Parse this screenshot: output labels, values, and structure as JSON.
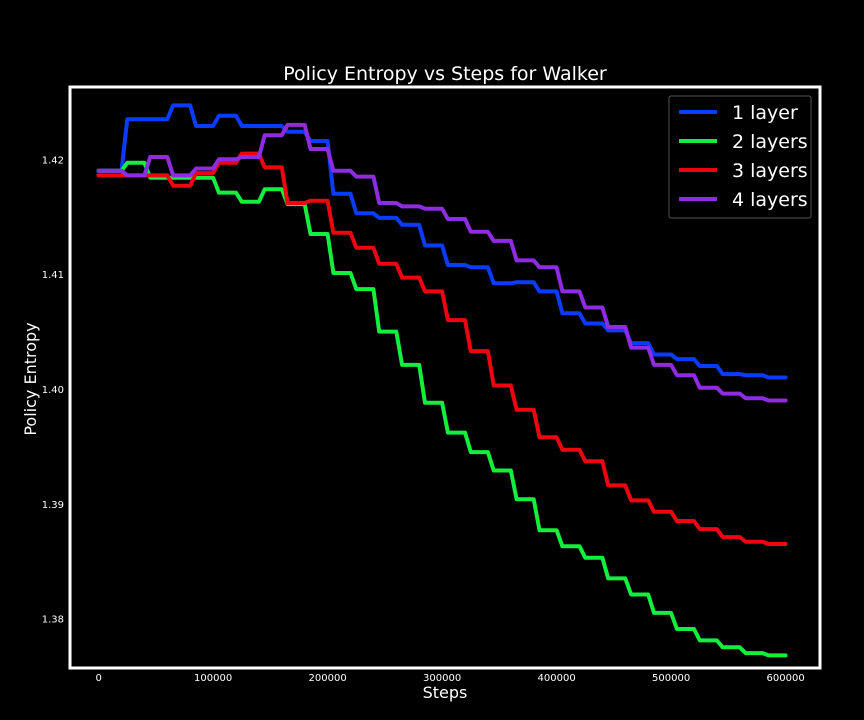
{
  "chart_data": {
    "type": "line",
    "title": "Policy Entropy vs Steps for Walker",
    "xlabel": "Steps",
    "ylabel": "Policy Entropy",
    "xlim": [
      -25000,
      630000
    ],
    "ylim": [
      1.3757,
      1.4263
    ],
    "xticks": [
      0,
      100000,
      200000,
      300000,
      400000,
      500000,
      600000
    ],
    "xtick_labels": [
      "0",
      "100000",
      "200000",
      "300000",
      "400000",
      "500000",
      "600000"
    ],
    "yticks": [
      1.38,
      1.39,
      1.4,
      1.41,
      1.42
    ],
    "ytick_labels": [
      "1.38",
      "1.39",
      "1.40",
      "1.41",
      "1.42"
    ],
    "grid": false,
    "legend_position": "top-right",
    "background": "#000000",
    "frame_color": "#ffffff",
    "series": [
      {
        "name": "1 layer",
        "color": "#0a3cff",
        "x": [
          0,
          20000,
          25000,
          60000,
          65000,
          80000,
          85000,
          100000,
          105000,
          120000,
          125000,
          160000,
          165000,
          180000,
          185000,
          200000,
          205000,
          220000,
          225000,
          240000,
          245000,
          260000,
          265000,
          280000,
          285000,
          300000,
          305000,
          320000,
          325000,
          340000,
          345000,
          360000,
          365000,
          380000,
          385000,
          400000,
          405000,
          420000,
          425000,
          440000,
          445000,
          460000,
          465000,
          480000,
          485000,
          500000,
          505000,
          520000,
          525000,
          540000,
          545000,
          560000,
          565000,
          580000,
          585000,
          600000
        ],
        "y": [
          1.419,
          1.419,
          1.4235,
          1.4235,
          1.4247,
          1.4247,
          1.4229,
          1.4229,
          1.4238,
          1.4238,
          1.4229,
          1.4229,
          1.4224,
          1.4224,
          1.4216,
          1.4216,
          1.417,
          1.417,
          1.4153,
          1.4153,
          1.4149,
          1.4149,
          1.4143,
          1.4143,
          1.4125,
          1.4125,
          1.4108,
          1.4108,
          1.4106,
          1.4106,
          1.4092,
          1.4092,
          1.4093,
          1.4093,
          1.4085,
          1.4085,
          1.4066,
          1.4066,
          1.4057,
          1.4057,
          1.4051,
          1.4051,
          1.404,
          1.404,
          1.403,
          1.403,
          1.4026,
          1.4026,
          1.402,
          1.402,
          1.4013,
          1.4013,
          1.4012,
          1.4012,
          1.401,
          1.401
        ]
      },
      {
        "name": "2 layers",
        "color": "#12ef3c",
        "x": [
          0,
          20000,
          25000,
          40000,
          45000,
          80000,
          85000,
          100000,
          105000,
          120000,
          125000,
          140000,
          145000,
          160000,
          165000,
          180000,
          185000,
          200000,
          205000,
          220000,
          225000,
          240000,
          245000,
          260000,
          265000,
          280000,
          285000,
          300000,
          305000,
          320000,
          325000,
          340000,
          345000,
          360000,
          365000,
          380000,
          385000,
          400000,
          405000,
          420000,
          425000,
          440000,
          445000,
          460000,
          465000,
          480000,
          485000,
          500000,
          505000,
          520000,
          525000,
          540000,
          545000,
          560000,
          565000,
          580000,
          585000,
          600000
        ],
        "y": [
          1.419,
          1.419,
          1.4197,
          1.4197,
          1.4184,
          1.4184,
          1.4184,
          1.4184,
          1.4171,
          1.4171,
          1.4163,
          1.4163,
          1.4174,
          1.4174,
          1.4161,
          1.4161,
          1.4135,
          1.4135,
          1.4101,
          1.4101,
          1.4087,
          1.4087,
          1.405,
          1.405,
          1.4021,
          1.4021,
          1.3988,
          1.3988,
          1.3962,
          1.3962,
          1.3945,
          1.3945,
          1.3929,
          1.3929,
          1.3904,
          1.3904,
          1.3877,
          1.3877,
          1.3863,
          1.3863,
          1.3853,
          1.3853,
          1.3835,
          1.3835,
          1.3821,
          1.3821,
          1.3805,
          1.3805,
          1.3791,
          1.3791,
          1.3781,
          1.3781,
          1.3775,
          1.3775,
          1.377,
          1.377,
          1.3768,
          1.3768
        ]
      },
      {
        "name": "3 layers",
        "color": "#ef0510",
        "x": [
          0,
          60000,
          65000,
          80000,
          85000,
          100000,
          105000,
          120000,
          125000,
          140000,
          145000,
          160000,
          165000,
          180000,
          185000,
          200000,
          205000,
          220000,
          225000,
          240000,
          245000,
          260000,
          265000,
          280000,
          285000,
          300000,
          305000,
          320000,
          325000,
          340000,
          345000,
          360000,
          365000,
          380000,
          385000,
          400000,
          405000,
          420000,
          425000,
          440000,
          445000,
          460000,
          465000,
          480000,
          485000,
          500000,
          505000,
          520000,
          525000,
          540000,
          545000,
          560000,
          565000,
          580000,
          585000,
          600000
        ],
        "y": [
          1.4186,
          1.4186,
          1.4177,
          1.4177,
          1.4188,
          1.4188,
          1.4197,
          1.4197,
          1.4205,
          1.4205,
          1.4193,
          1.4193,
          1.4162,
          1.4162,
          1.4164,
          1.4164,
          1.4136,
          1.4136,
          1.4123,
          1.4123,
          1.4109,
          1.4109,
          1.4097,
          1.4097,
          1.4085,
          1.4085,
          1.406,
          1.406,
          1.4033,
          1.4033,
          1.4003,
          1.4003,
          1.3982,
          1.3982,
          1.3958,
          1.3958,
          1.3947,
          1.3947,
          1.3937,
          1.3937,
          1.3916,
          1.3916,
          1.3903,
          1.3903,
          1.3893,
          1.3893,
          1.3885,
          1.3885,
          1.3878,
          1.3878,
          1.3871,
          1.3871,
          1.3867,
          1.3867,
          1.3865,
          1.3865
        ]
      },
      {
        "name": "4 layers",
        "color": "#8f2be0",
        "x": [
          0,
          20000,
          25000,
          40000,
          45000,
          60000,
          65000,
          80000,
          85000,
          100000,
          105000,
          120000,
          125000,
          140000,
          145000,
          160000,
          165000,
          180000,
          185000,
          200000,
          205000,
          220000,
          225000,
          240000,
          245000,
          260000,
          265000,
          280000,
          285000,
          300000,
          305000,
          320000,
          325000,
          340000,
          345000,
          360000,
          365000,
          380000,
          385000,
          400000,
          405000,
          420000,
          425000,
          440000,
          445000,
          460000,
          465000,
          480000,
          485000,
          500000,
          505000,
          520000,
          525000,
          540000,
          545000,
          560000,
          565000,
          580000,
          585000,
          600000
        ],
        "y": [
          1.419,
          1.419,
          1.4186,
          1.4186,
          1.4202,
          1.4202,
          1.4186,
          1.4186,
          1.4192,
          1.4192,
          1.42,
          1.42,
          1.4202,
          1.4202,
          1.4221,
          1.4221,
          1.423,
          1.423,
          1.4209,
          1.4209,
          1.419,
          1.419,
          1.4185,
          1.4185,
          1.4162,
          1.4162,
          1.4159,
          1.4159,
          1.4157,
          1.4157,
          1.4148,
          1.4148,
          1.4137,
          1.4137,
          1.4129,
          1.4129,
          1.4112,
          1.4112,
          1.4106,
          1.4106,
          1.4085,
          1.4085,
          1.4071,
          1.4071,
          1.4054,
          1.4054,
          1.4036,
          1.4036,
          1.4021,
          1.4021,
          1.4012,
          1.4012,
          1.4001,
          1.4001,
          1.3996,
          1.3996,
          1.3992,
          1.3992,
          1.399,
          1.399
        ]
      }
    ]
  }
}
